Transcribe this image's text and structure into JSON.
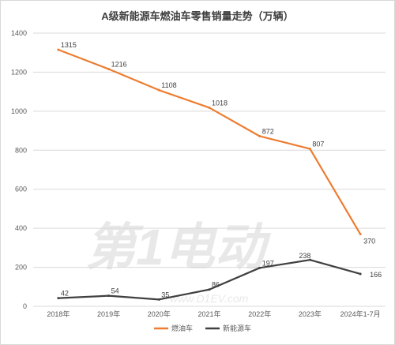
{
  "chart_data": {
    "type": "line",
    "title": "A级新能源车燃油车零售销量走势（万辆）",
    "categories": [
      "2018年",
      "2019年",
      "2020年",
      "2021年",
      "2022年",
      "2023年",
      "2024年1-7月"
    ],
    "series": [
      {
        "name": "燃油车",
        "color": "#ED7D31",
        "values": [
          1315,
          1216,
          1108,
          1018,
          872,
          807,
          370
        ]
      },
      {
        "name": "新能源车",
        "color": "#404040",
        "values": [
          42,
          54,
          35,
          86,
          197,
          238,
          166
        ]
      }
    ],
    "ylim": [
      0,
      1400
    ],
    "yticks": [
      0,
      200,
      400,
      600,
      800,
      1000,
      1200,
      1400
    ],
    "grid": true,
    "legend": "bottom"
  },
  "watermark": {
    "text": "第1电动",
    "url": "www.D1EV.com"
  }
}
